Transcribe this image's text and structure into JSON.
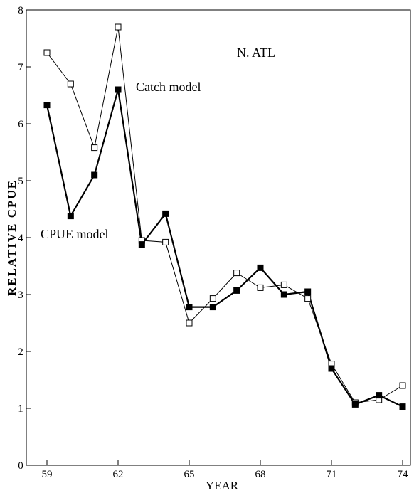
{
  "chart_data": {
    "type": "line",
    "title": "",
    "annotation_region": "N. ATL",
    "xlabel": "YEAR",
    "ylabel": "RELATIVE CPUE",
    "xlim": [
      59,
      74
    ],
    "ylim": [
      0,
      8
    ],
    "x_ticks": [
      "59",
      "62",
      "65",
      "68",
      "71",
      "74"
    ],
    "y_ticks": [
      "0",
      "1",
      "2",
      "3",
      "4",
      "5",
      "6",
      "7",
      "8"
    ],
    "grid": false,
    "x": [
      59,
      60,
      61,
      62,
      63,
      64,
      65,
      66,
      67,
      68,
      69,
      70,
      71,
      72,
      73,
      74
    ],
    "series": [
      {
        "name": "Catch model",
        "marker": "open-square",
        "values": [
          7.25,
          6.7,
          5.58,
          7.7,
          3.95,
          3.92,
          2.5,
          2.93,
          3.38,
          3.12,
          3.17,
          2.93,
          1.78,
          1.1,
          1.15,
          1.4
        ]
      },
      {
        "name": "CPUE model",
        "marker": "filled-square",
        "values": [
          6.33,
          4.38,
          5.1,
          6.6,
          3.88,
          4.42,
          2.78,
          2.78,
          3.07,
          3.47,
          3.0,
          3.05,
          1.7,
          1.07,
          1.23,
          1.03
        ]
      }
    ]
  }
}
